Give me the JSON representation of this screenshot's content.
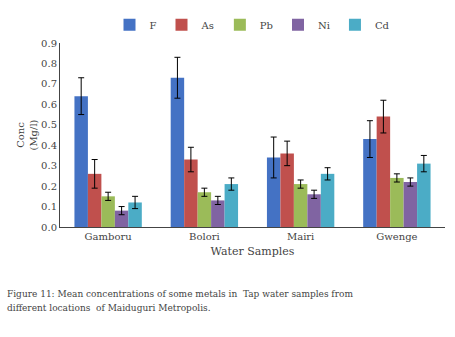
{
  "chart_data": {
    "type": "bar",
    "categories": [
      "Gamboru",
      "Bolori",
      "Mairi",
      "Gwenge"
    ],
    "series": [
      {
        "name": "F",
        "color": "#4472C4",
        "values": [
          0.64,
          0.73,
          0.34,
          0.43
        ],
        "errors": [
          0.09,
          0.1,
          0.1,
          0.09
        ]
      },
      {
        "name": "As",
        "color": "#C0504D",
        "values": [
          0.26,
          0.33,
          0.36,
          0.54
        ],
        "errors": [
          0.07,
          0.06,
          0.06,
          0.08
        ]
      },
      {
        "name": "Pb",
        "color": "#9BBB59",
        "values": [
          0.15,
          0.17,
          0.21,
          0.24
        ],
        "errors": [
          0.02,
          0.02,
          0.02,
          0.02
        ]
      },
      {
        "name": "Ni",
        "color": "#8064A2",
        "values": [
          0.08,
          0.13,
          0.16,
          0.22
        ],
        "errors": [
          0.02,
          0.02,
          0.02,
          0.02
        ]
      },
      {
        "name": "Cd",
        "color": "#4BACC6",
        "values": [
          0.12,
          0.21,
          0.26,
          0.31
        ],
        "errors": [
          0.03,
          0.03,
          0.03,
          0.04
        ]
      }
    ],
    "ylabel": "Conc\n(Mg/l)",
    "xlabel": "Water Samples",
    "ylim": [
      0,
      0.9
    ],
    "yticks": [
      {
        "value": 0,
        "label": "0.0"
      },
      0.1,
      0.2,
      0.3,
      0.4,
      0.5,
      0.6,
      0.7,
      0.8,
      0.9
    ],
    "grid": false,
    "legend": "upper center",
    "annotations": [
      "Figure 11: Mean concentrations of some metals in  Tap water samples from",
      "different locations  of Maiduguri Metropolis."
    ]
  }
}
